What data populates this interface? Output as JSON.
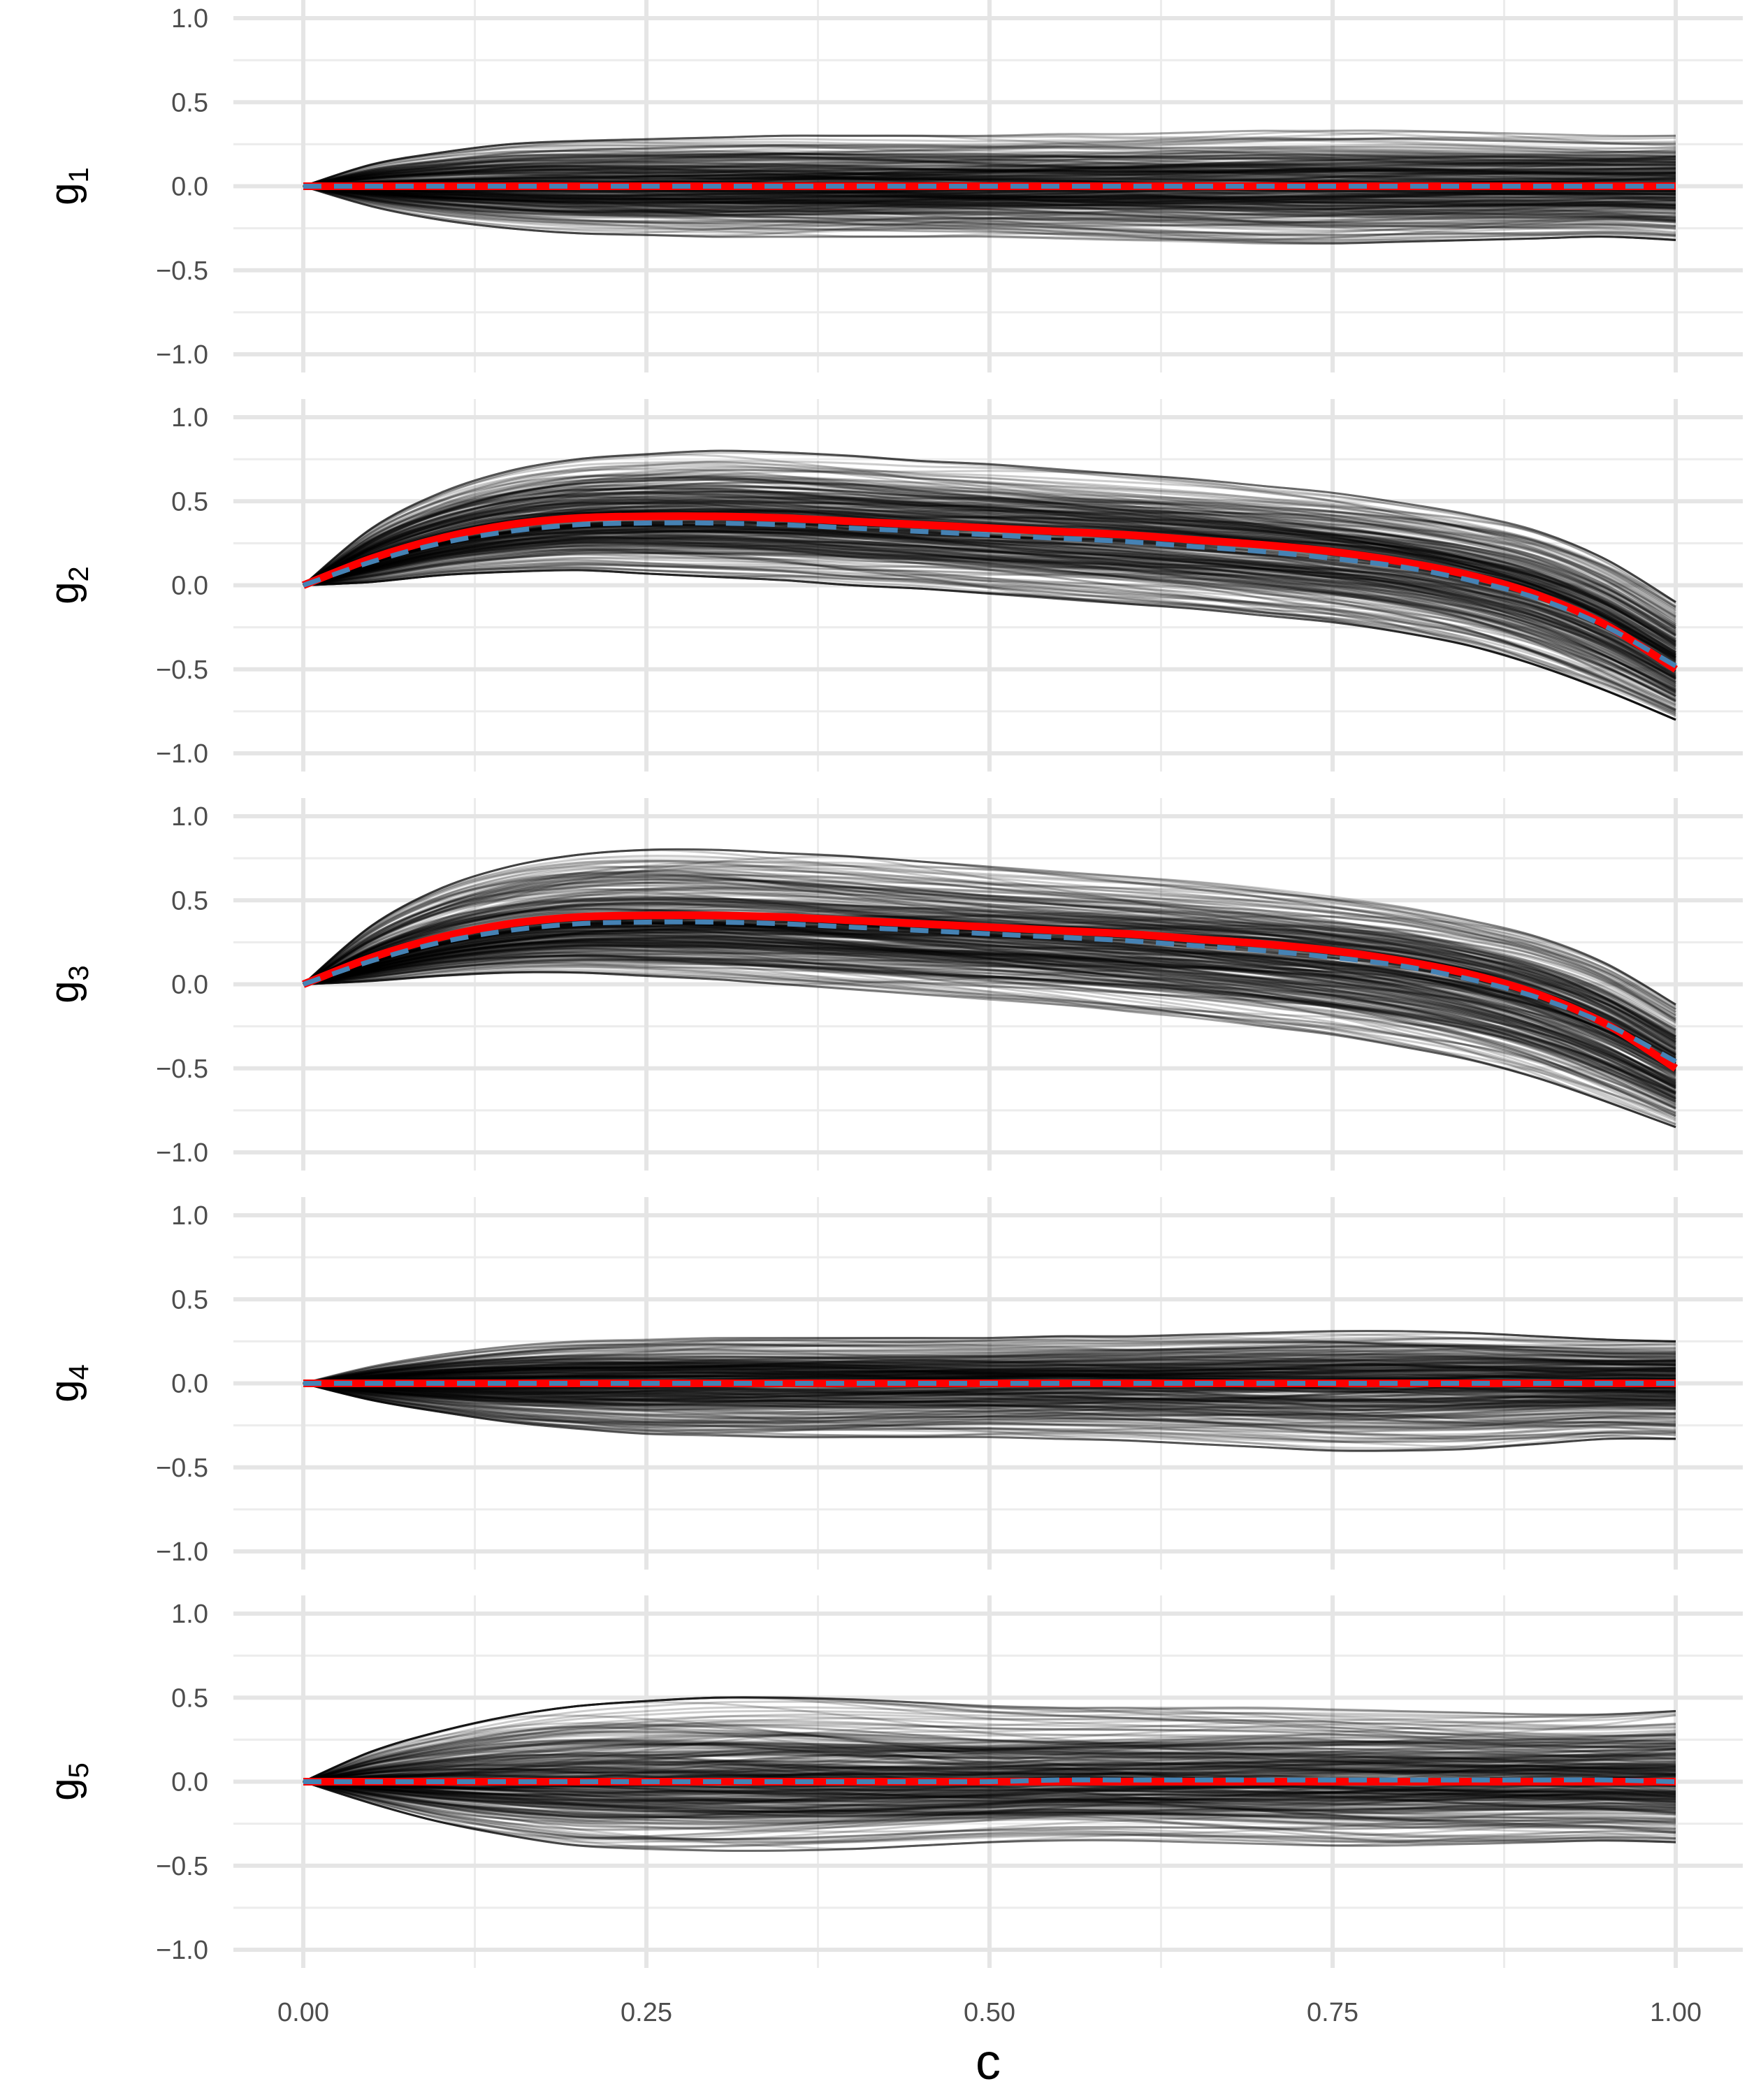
{
  "chart_data": {
    "type": "line",
    "layout": "5 vertically stacked panels sharing the x-axis",
    "xlabel": "c",
    "xlim": [
      0,
      1
    ],
    "x_ticks": [
      0.0,
      0.25,
      0.5,
      0.75,
      1.0
    ],
    "x_tick_labels": [
      "0.00",
      "0.25",
      "0.50",
      "0.75",
      "1.00"
    ],
    "y_ticks": [
      1.0,
      0.5,
      0.0,
      -0.5,
      -1.0
    ],
    "y_tick_labels": [
      "1.0",
      "0.5",
      "0.0",
      "−0.5",
      "−1.0"
    ],
    "ylim": [
      -1.1,
      1.1
    ],
    "grid": true,
    "legend": "none",
    "x": [
      0.0,
      0.05,
      0.1,
      0.15,
      0.2,
      0.25,
      0.3,
      0.35,
      0.4,
      0.45,
      0.5,
      0.55,
      0.6,
      0.65,
      0.7,
      0.75,
      0.8,
      0.85,
      0.9,
      0.95,
      1.0
    ],
    "colors": {
      "sample_paths": "#000000",
      "true_function": "#ff0000",
      "posterior_mean": "#4682b4",
      "grid": "#e5e5e5",
      "tick_text": "#4d4d4d"
    },
    "sample_paths_per_panel": 300,
    "panels": [
      {
        "ylabel_main": "g",
        "ylabel_sub": "1",
        "true": [
          0,
          0,
          0,
          0,
          0,
          0,
          0,
          0,
          0,
          0,
          0,
          0,
          0,
          0,
          0,
          0,
          0,
          0,
          0,
          0,
          0
        ],
        "mean": [
          0,
          0,
          0,
          0,
          0,
          0,
          0,
          0,
          0,
          0,
          0,
          0,
          0,
          0,
          0,
          0,
          0,
          0,
          0,
          0,
          0
        ],
        "band_upper": [
          0,
          0.13,
          0.2,
          0.25,
          0.27,
          0.28,
          0.29,
          0.3,
          0.3,
          0.3,
          0.3,
          0.31,
          0.31,
          0.32,
          0.33,
          0.33,
          0.33,
          0.32,
          0.31,
          0.3,
          0.3
        ],
        "band_lower": [
          0,
          -0.12,
          -0.2,
          -0.25,
          -0.28,
          -0.29,
          -0.3,
          -0.3,
          -0.3,
          -0.3,
          -0.3,
          -0.31,
          -0.32,
          -0.33,
          -0.34,
          -0.34,
          -0.33,
          -0.32,
          -0.31,
          -0.3,
          -0.32
        ]
      },
      {
        "ylabel_main": "g",
        "ylabel_sub": "2",
        "true": [
          0,
          0.16,
          0.28,
          0.36,
          0.4,
          0.41,
          0.41,
          0.4,
          0.38,
          0.36,
          0.34,
          0.32,
          0.3,
          0.27,
          0.24,
          0.2,
          0.14,
          0.06,
          -0.06,
          -0.24,
          -0.5
        ],
        "mean": [
          0,
          0.14,
          0.25,
          0.32,
          0.36,
          0.37,
          0.37,
          0.36,
          0.34,
          0.32,
          0.3,
          0.28,
          0.26,
          0.23,
          0.2,
          0.16,
          0.11,
          0.03,
          -0.08,
          -0.25,
          -0.48
        ],
        "band_upper": [
          0,
          0.34,
          0.55,
          0.68,
          0.75,
          0.78,
          0.8,
          0.79,
          0.77,
          0.74,
          0.72,
          0.69,
          0.66,
          0.63,
          0.59,
          0.55,
          0.49,
          0.42,
          0.32,
          0.15,
          -0.1
        ],
        "band_lower": [
          0,
          0.02,
          0.06,
          0.08,
          0.09,
          0.07,
          0.05,
          0.03,
          0.0,
          -0.02,
          -0.05,
          -0.08,
          -0.11,
          -0.14,
          -0.18,
          -0.22,
          -0.28,
          -0.36,
          -0.48,
          -0.63,
          -0.8
        ]
      },
      {
        "ylabel_main": "g",
        "ylabel_sub": "3",
        "true": [
          0,
          0.16,
          0.28,
          0.36,
          0.4,
          0.41,
          0.41,
          0.4,
          0.38,
          0.36,
          0.34,
          0.32,
          0.3,
          0.27,
          0.24,
          0.2,
          0.14,
          0.06,
          -0.06,
          -0.24,
          -0.5
        ],
        "mean": [
          0,
          0.14,
          0.25,
          0.32,
          0.36,
          0.37,
          0.37,
          0.36,
          0.34,
          0.32,
          0.3,
          0.28,
          0.26,
          0.23,
          0.2,
          0.16,
          0.11,
          0.03,
          -0.08,
          -0.24,
          -0.46
        ],
        "band_upper": [
          0,
          0.35,
          0.57,
          0.7,
          0.77,
          0.8,
          0.8,
          0.78,
          0.76,
          0.73,
          0.7,
          0.67,
          0.64,
          0.61,
          0.57,
          0.52,
          0.46,
          0.38,
          0.28,
          0.12,
          -0.12
        ],
        "band_lower": [
          0,
          0.02,
          0.05,
          0.07,
          0.07,
          0.05,
          0.03,
          0.0,
          -0.03,
          -0.06,
          -0.09,
          -0.12,
          -0.16,
          -0.2,
          -0.25,
          -0.3,
          -0.37,
          -0.45,
          -0.56,
          -0.7,
          -0.85
        ]
      },
      {
        "ylabel_main": "g",
        "ylabel_sub": "4",
        "true": [
          0,
          0,
          0,
          0,
          0,
          0,
          0,
          0,
          0,
          0,
          0,
          0,
          0,
          0,
          0,
          0,
          0,
          0,
          0,
          0,
          0
        ],
        "mean": [
          0,
          0,
          0,
          0,
          0,
          0,
          0,
          0,
          0,
          0,
          0,
          0,
          0,
          0,
          0,
          0,
          0,
          0,
          0,
          0,
          0
        ],
        "band_upper": [
          0,
          0.1,
          0.17,
          0.22,
          0.25,
          0.26,
          0.27,
          0.27,
          0.27,
          0.27,
          0.27,
          0.28,
          0.28,
          0.29,
          0.3,
          0.31,
          0.31,
          0.3,
          0.28,
          0.26,
          0.25
        ],
        "band_lower": [
          0,
          -0.1,
          -0.17,
          -0.23,
          -0.27,
          -0.3,
          -0.31,
          -0.32,
          -0.32,
          -0.32,
          -0.32,
          -0.33,
          -0.34,
          -0.36,
          -0.38,
          -0.4,
          -0.4,
          -0.39,
          -0.36,
          -0.33,
          -0.33
        ]
      },
      {
        "ylabel_main": "g",
        "ylabel_sub": "5",
        "true": [
          0,
          0,
          0,
          0,
          0,
          0,
          0,
          0,
          0,
          0,
          0,
          0,
          0,
          0,
          0,
          0,
          0,
          0,
          0,
          0,
          0
        ],
        "mean": [
          0,
          0,
          0,
          0,
          0,
          0,
          0,
          0,
          0,
          0,
          0,
          0.01,
          0.01,
          0.01,
          0.01,
          0.01,
          0.01,
          0.01,
          0.01,
          0.01,
          0
        ],
        "band_upper": [
          0,
          0.18,
          0.3,
          0.39,
          0.45,
          0.48,
          0.5,
          0.5,
          0.49,
          0.47,
          0.45,
          0.44,
          0.44,
          0.44,
          0.44,
          0.43,
          0.42,
          0.41,
          0.4,
          0.4,
          0.42
        ],
        "band_lower": [
          0,
          -0.13,
          -0.24,
          -0.32,
          -0.38,
          -0.4,
          -0.41,
          -0.41,
          -0.4,
          -0.38,
          -0.36,
          -0.35,
          -0.35,
          -0.36,
          -0.37,
          -0.38,
          -0.38,
          -0.37,
          -0.36,
          -0.35,
          -0.36
        ]
      }
    ]
  }
}
